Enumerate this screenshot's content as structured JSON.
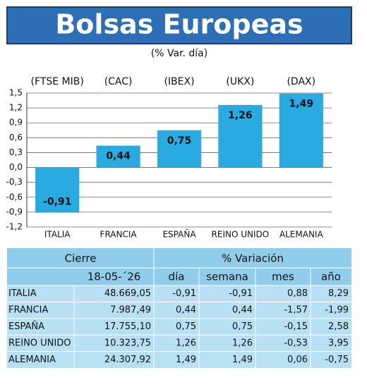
{
  "chart_data": {
    "type": "bar",
    "title": "Bolsas Europeas",
    "subtitle": "(% Var. día)",
    "categories": [
      "ITALIA",
      "FRANCIA",
      "ESPAÑA",
      "REINO UNIDO",
      "ALEMANIA"
    ],
    "index_labels": [
      "(FTSE MIB)",
      "(CAC)",
      "(IBEX)",
      "(UKX)",
      "(DAX)"
    ],
    "values": [
      -0.91,
      0.44,
      0.75,
      1.26,
      1.49
    ],
    "value_labels": [
      "-0,91",
      "0,44",
      "0,75",
      "1,26",
      "1,49"
    ],
    "color": "#29aae1",
    "ylim": [
      -1.2,
      1.5
    ],
    "yticks": [
      {
        "value": 1.5,
        "label": "1,5"
      },
      {
        "value": 1.2,
        "label": "1,2"
      },
      {
        "value": 0.9,
        "label": "0,9"
      },
      {
        "value": 0.6,
        "label": "0,6"
      },
      {
        "value": 0.3,
        "label": "0,3"
      },
      {
        "value": 0,
        "label": "0,0"
      },
      {
        "value": -0.3,
        "label": "-0,3"
      },
      {
        "value": -0.6,
        "label": "-0,6"
      },
      {
        "value": -0.9,
        "label": "-0,9"
      },
      {
        "value": -1.2,
        "label": "-1,2"
      }
    ],
    "grid": true
  },
  "table": {
    "groups": [
      "Cierre",
      "% Variación"
    ],
    "columns": [
      "18-05-´26",
      "día",
      "semana",
      "mes",
      "año"
    ],
    "rows": [
      [
        "ITALIA",
        "48.669,05",
        "-0,91",
        "-0,91",
        "0,88",
        "8,29"
      ],
      [
        "FRANCIA",
        "7.987,49",
        "0,44",
        "0,44",
        "-1,57",
        "-1,99"
      ],
      [
        "ESPAÑA",
        "17.755,10",
        "0,75",
        "0,75",
        "-0,15",
        "2,58"
      ],
      [
        "REINO UNIDO",
        "10.323,75",
        "1,26",
        "1,26",
        "-0,53",
        "3,95"
      ],
      [
        "ALEMANIA",
        "24.307,92",
        "1,49",
        "1,49",
        "0,06",
        "-0,75"
      ]
    ]
  }
}
